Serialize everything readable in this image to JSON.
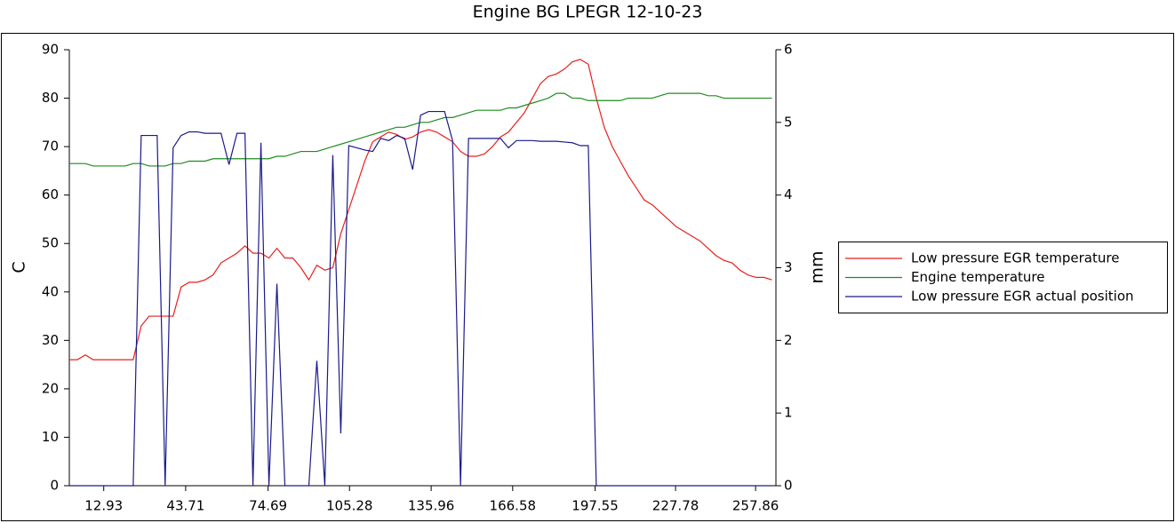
{
  "chart_data": {
    "type": "line",
    "title": "Engine BG LPEGR 12-10-23",
    "ylabel": "C",
    "y2label": "mm",
    "xlim": [
      0,
      265.5
    ],
    "xticks": [
      12.93,
      43.71,
      74.69,
      105.28,
      135.96,
      166.58,
      197.55,
      227.78,
      257.86
    ],
    "ylim": [
      0,
      90
    ],
    "yticks": [
      0,
      10,
      20,
      30,
      40,
      50,
      60,
      70,
      80,
      90
    ],
    "y2lim": [
      0,
      6
    ],
    "y2ticks": [
      0,
      1,
      2,
      3,
      4,
      5,
      6
    ],
    "grid": false,
    "legend": "right",
    "x": [
      0,
      3,
      6,
      9,
      12,
      15,
      18,
      21,
      24,
      27,
      30,
      33,
      36,
      39,
      42,
      45,
      48,
      51,
      54,
      57,
      60,
      63,
      66,
      69,
      72,
      75,
      78,
      81,
      84,
      87,
      90,
      93,
      96,
      99,
      102,
      105,
      108,
      111,
      114,
      117,
      120,
      123,
      126,
      129,
      132,
      135,
      138,
      141,
      144,
      147,
      150,
      153,
      156,
      159,
      162,
      165,
      168,
      171,
      174,
      177,
      180,
      183,
      186,
      189,
      192,
      195,
      198,
      201,
      204,
      207,
      210,
      213,
      216,
      219,
      222,
      225,
      228,
      231,
      234,
      237,
      240,
      243,
      246,
      249,
      252,
      255,
      258,
      261,
      264
    ],
    "series": [
      {
        "name": "Low pressure EGR temperature",
        "color": "#e8201c",
        "values": [
          26,
          26,
          27,
          26,
          26,
          26,
          26,
          26,
          26,
          33,
          35,
          35,
          35,
          35,
          41,
          42,
          42,
          42.5,
          43.5,
          46,
          47,
          48,
          49.5,
          48,
          48,
          47,
          49,
          47,
          47,
          45,
          42.5,
          45.5,
          44.5,
          45,
          52,
          57,
          62,
          67,
          71,
          72,
          73,
          72.5,
          71.5,
          72,
          73,
          73.5,
          73,
          72,
          71,
          69,
          68,
          68,
          68.5,
          70,
          72,
          73,
          75,
          77,
          80,
          83,
          84.5,
          85,
          86,
          87.5,
          88,
          87,
          80,
          74,
          70,
          67,
          64,
          61.5,
          59,
          58,
          56.5,
          55,
          53.5,
          52.5,
          51.5,
          50.5,
          49,
          47.5,
          46.5,
          46,
          44.5,
          43.5,
          43,
          43,
          42.5
        ]
      },
      {
        "name": "Engine temperature",
        "color": "#1e8c1e",
        "values": [
          66.5,
          66.5,
          66.5,
          66,
          66,
          66,
          66,
          66,
          66.5,
          66.5,
          66,
          66,
          66,
          66.5,
          66.5,
          67,
          67,
          67,
          67.5,
          67.5,
          67.5,
          67.5,
          67.5,
          67.5,
          67.5,
          67.5,
          68,
          68,
          68.5,
          69,
          69,
          69,
          69.5,
          70,
          70.5,
          71,
          71.5,
          72,
          72.5,
          73,
          73.5,
          74,
          74,
          74.5,
          75,
          75,
          75.5,
          76,
          76,
          76.5,
          77,
          77.5,
          77.5,
          77.5,
          77.5,
          78,
          78,
          78.5,
          79,
          79.5,
          80,
          81,
          81,
          80,
          80,
          79.5,
          79.5,
          79.5,
          79.5,
          79.5,
          80,
          80,
          80,
          80,
          80.5,
          81,
          81,
          81,
          81,
          81,
          80.5,
          80.5,
          80,
          80,
          80,
          80,
          80,
          80,
          80
        ]
      },
      {
        "name": "Low pressure EGR actual position",
        "color": "#1a1a8c",
        "axis": "y2",
        "values": [
          0,
          0,
          0,
          0,
          0,
          0,
          0,
          0,
          0,
          4.82,
          4.82,
          4.82,
          0,
          4.65,
          4.82,
          4.87,
          4.87,
          4.85,
          4.85,
          4.85,
          4.42,
          4.85,
          4.85,
          0,
          4.72,
          0,
          2.78,
          0,
          0,
          0,
          0,
          1.72,
          0,
          4.55,
          0.72,
          4.68,
          4.65,
          4.62,
          4.6,
          4.78,
          4.75,
          4.82,
          4.78,
          4.35,
          5.1,
          5.15,
          5.15,
          5.15,
          4.75,
          0,
          4.78,
          4.78,
          4.78,
          4.78,
          4.78,
          4.65,
          4.75,
          4.75,
          4.75,
          4.74,
          4.74,
          4.74,
          4.73,
          4.72,
          4.68,
          4.68,
          0,
          0,
          0,
          0,
          0,
          0,
          0,
          0,
          0,
          0,
          0,
          0,
          0,
          0,
          0,
          0,
          0,
          0,
          0,
          0,
          0,
          0,
          0
        ]
      }
    ]
  }
}
